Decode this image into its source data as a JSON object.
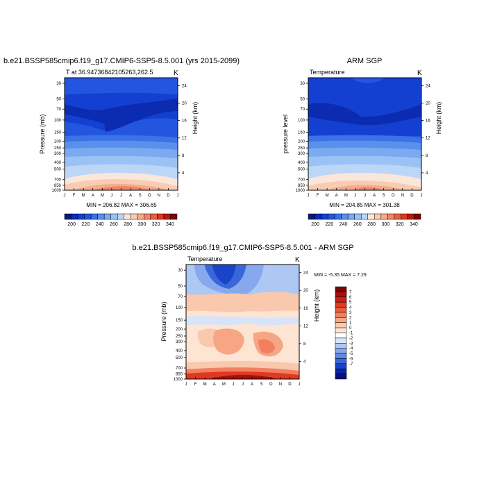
{
  "chart_data": [
    {
      "type": "heatmap",
      "title": "b.e21.BSSP585cmip6.f19_g17.CMIP6-SSP5-8.5.001 (yrs 2015-2099)",
      "left_label": "T at 36.94736842105263,262.5",
      "right_label": "K",
      "ylabel": "Pressure (mb)",
      "ylabel_right": "Height (km)",
      "x_categories": [
        "J",
        "F",
        "M",
        "A",
        "M",
        "J",
        "J",
        "A",
        "S",
        "O",
        "N",
        "D",
        "J"
      ],
      "pressure_ticks": [
        30,
        50,
        70,
        100,
        150,
        200,
        250,
        300,
        400,
        500,
        700,
        850,
        1000
      ],
      "height_ticks": [
        4,
        8,
        12,
        16,
        20,
        24
      ],
      "ylim_pressure": [
        1000,
        25
      ],
      "min_max_text": "MIN = 206.82  MAX = 306.65",
      "colorbar_labels": [
        "200",
        "220",
        "240",
        "260",
        "280",
        "300",
        "320",
        "340"
      ],
      "levels": [
        190,
        200,
        210,
        220,
        230,
        240,
        250,
        260,
        270,
        280,
        290,
        300,
        310,
        320,
        330,
        340,
        350
      ]
    },
    {
      "type": "heatmap",
      "title": "ARM SGP",
      "left_label": "Temperature",
      "right_label": "K",
      "ylabel": "pressure level",
      "ylabel_right": "Height (km)",
      "x_categories": [
        "J",
        "F",
        "M",
        "A",
        "M",
        "J",
        "J",
        "A",
        "S",
        "O",
        "N",
        "D",
        "J"
      ],
      "pressure_ticks": [
        30,
        50,
        70,
        100,
        150,
        200,
        250,
        300,
        400,
        500,
        700,
        850,
        1000
      ],
      "height_ticks": [
        4,
        8,
        12,
        16,
        20,
        24
      ],
      "ylim_pressure": [
        1000,
        25
      ],
      "min_max_text": "MIN = 204.85  MAX = 301.38",
      "colorbar_labels": [
        "200",
        "220",
        "240",
        "260",
        "280",
        "300",
        "320",
        "340"
      ],
      "levels": [
        190,
        200,
        210,
        220,
        230,
        240,
        250,
        260,
        270,
        280,
        290,
        300,
        310,
        320,
        330,
        340,
        350
      ]
    },
    {
      "type": "heatmap",
      "title": "b.e21.BSSP585cmip6.f19_g17.CMIP6-SSP5-8.5.001 - ARM SGP",
      "left_label": "Temperature",
      "right_label": "K",
      "ylabel": "Pressure (mb)",
      "ylabel_right": "Height (km)",
      "x_categories": [
        "J",
        "F",
        "M",
        "A",
        "M",
        "J",
        "J",
        "A",
        "S",
        "O",
        "N",
        "D",
        "J"
      ],
      "pressure_ticks": [
        30,
        50,
        70,
        100,
        150,
        200,
        250,
        300,
        400,
        500,
        700,
        850,
        1000
      ],
      "height_ticks": [
        4,
        8,
        12,
        16,
        20,
        24
      ],
      "ylim_pressure": [
        1000,
        25
      ],
      "min_max_text": "MIN =  -5.35  MAX =   7.29",
      "colorbar_labels": [
        "7",
        "6",
        "5",
        "4",
        "3",
        "2",
        "1",
        "0",
        "-1",
        "-2",
        "-3",
        "-4",
        "-5",
        "-6",
        "-7"
      ]
    }
  ],
  "colors": {
    "temperature_palette": [
      "#081a7a",
      "#0b2bb0",
      "#1440d2",
      "#2356e0",
      "#3b73e6",
      "#5a8fec",
      "#7aaaf0",
      "#9bc2f4",
      "#bcd6f7",
      "#fbe7da",
      "#f8cbb3",
      "#f6ab8a",
      "#f18665",
      "#e6603f",
      "#d63a23",
      "#b81910",
      "#7d0505"
    ],
    "difference_palette": [
      "#7d0505",
      "#a80f0c",
      "#c72016",
      "#de3a23",
      "#ec5a38",
      "#f28060",
      "#f6a585",
      "#f9c8ad",
      "#fde4d3",
      "#ffffff",
      "#d6e4fa",
      "#aec8f4",
      "#86a9ee",
      "#5f88e6",
      "#3a66dc",
      "#1a44c8",
      "#0826a8",
      "#06127a"
    ]
  }
}
